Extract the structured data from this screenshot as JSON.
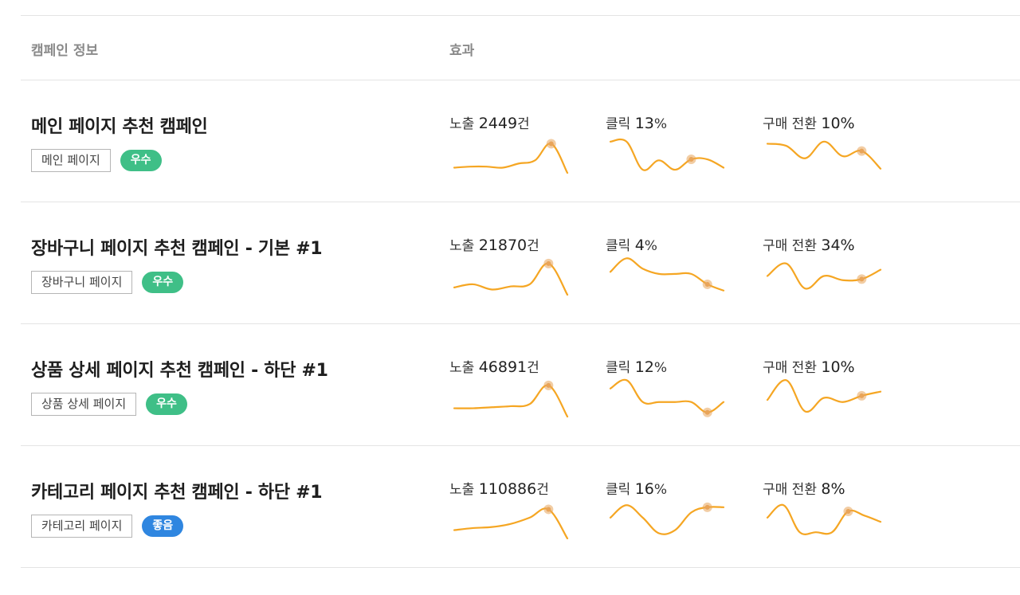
{
  "header": {
    "info_label": "캠페인 정보",
    "effect_label": "효과"
  },
  "colors": {
    "spark": "#f5a623",
    "spark_dot": "#e8a45a",
    "good_badge": "#3fbf87",
    "fine_badge": "#2f86e0"
  },
  "campaigns": [
    {
      "title": "메인 페이지 추천 캠페인",
      "tag": "메인 페이지",
      "badge": "우수",
      "badge_color": "#3fbf87",
      "metrics": [
        {
          "label": "노출",
          "value": "2449",
          "unit": "건",
          "spark": [
            5,
            6,
            6,
            5,
            9,
            12,
            28,
            0
          ],
          "marker_index": 6
        },
        {
          "label": "클릭",
          "value": "13",
          "unit": "%",
          "spark": [
            30,
            30,
            3,
            12,
            3,
            13,
            13,
            5
          ],
          "marker_index": 5
        },
        {
          "label": "구매 전환",
          "value": "10%",
          "unit": "",
          "spark": [
            28,
            26,
            14,
            30,
            16,
            21,
            4
          ],
          "marker_index": 5
        }
      ]
    },
    {
      "title": "장바구니 페이지 추천 캠페인 - 기본 #1",
      "tag": "장바구니 페이지",
      "badge": "우수",
      "badge_color": "#3fbf87",
      "metrics": [
        {
          "label": "노출",
          "value": "21870",
          "unit": "건",
          "spark": [
            7,
            10,
            5,
            8,
            10,
            30,
            0
          ],
          "marker_index": 5
        },
        {
          "label": "클릭",
          "value": "4",
          "unit": "%",
          "spark": [
            22,
            35,
            25,
            20,
            20,
            20,
            10,
            4
          ],
          "marker_index": 6
        },
        {
          "label": "구매 전환",
          "value": "34%",
          "unit": "",
          "spark": [
            18,
            30,
            6,
            18,
            14,
            15,
            24
          ],
          "marker_index": 5
        }
      ]
    },
    {
      "title": "상품 상세 페이지 추천 캠페인 - 하단 #1",
      "tag": "상품 상세 페이지",
      "badge": "우수",
      "badge_color": "#3fbf87",
      "metrics": [
        {
          "label": "노출",
          "value": "46891",
          "unit": "건",
          "spark": [
            8,
            8,
            9,
            10,
            12,
            30,
            0
          ],
          "marker_index": 5
        },
        {
          "label": "클릭",
          "value": "12",
          "unit": "%",
          "spark": [
            27,
            35,
            14,
            14,
            14,
            14,
            4,
            14
          ],
          "marker_index": 6
        },
        {
          "label": "구매 전환",
          "value": "10%",
          "unit": "",
          "spark": [
            16,
            35,
            5,
            18,
            14,
            20,
            24
          ],
          "marker_index": 5
        }
      ]
    },
    {
      "title": "카테고리 페이지 추천 캠페인 - 하단 #1",
      "tag": "카테고리 페이지",
      "badge": "좋음",
      "badge_color": "#2f86e0",
      "metrics": [
        {
          "label": "노출",
          "value": "110886",
          "unit": "건",
          "spark": [
            8,
            10,
            11,
            14,
            20,
            28,
            0
          ],
          "marker_index": 5
        },
        {
          "label": "클릭",
          "value": "16",
          "unit": "%",
          "spark": [
            20,
            32,
            20,
            5,
            8,
            25,
            30,
            30
          ],
          "marker_index": 6
        },
        {
          "label": "구매 전환",
          "value": "8%",
          "unit": "",
          "spark": [
            20,
            32,
            6,
            6,
            6,
            26,
            22,
            16
          ],
          "marker_index": 5
        }
      ]
    }
  ]
}
